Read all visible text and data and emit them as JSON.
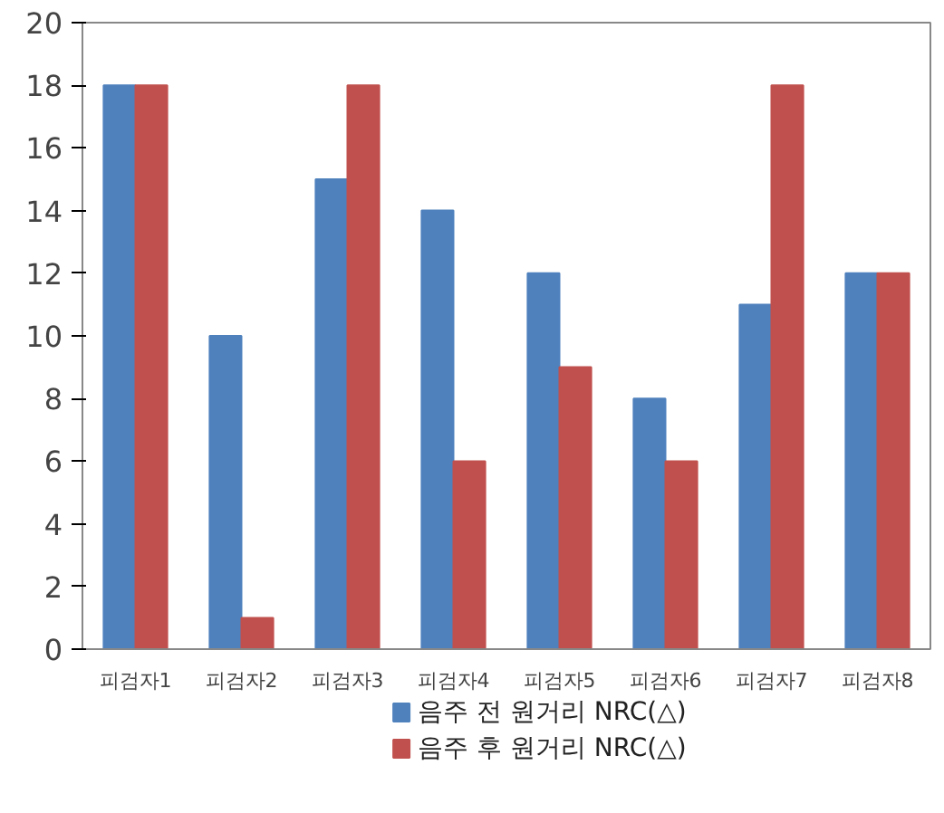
{
  "chart_data": {
    "type": "bar",
    "categories": [
      "피검자1",
      "피검자2",
      "피검자3",
      "피검자4",
      "피검자5",
      "피검자6",
      "피검자7",
      "피검자8"
    ],
    "series": [
      {
        "name": "음주 전 원거리 NRC(△)",
        "color": "#4f81bd",
        "values": [
          18,
          10,
          15,
          14,
          12,
          8,
          11,
          12
        ]
      },
      {
        "name": "음주 후 원거리 NRC(△)",
        "color": "#c0504d",
        "values": [
          18,
          1,
          18,
          6,
          9,
          6,
          18,
          12
        ]
      }
    ],
    "ylim": [
      0,
      20
    ],
    "yticks": [
      0,
      2,
      4,
      6,
      8,
      10,
      12,
      14,
      16,
      18,
      20
    ],
    "grid": false,
    "legend": "bottom"
  }
}
